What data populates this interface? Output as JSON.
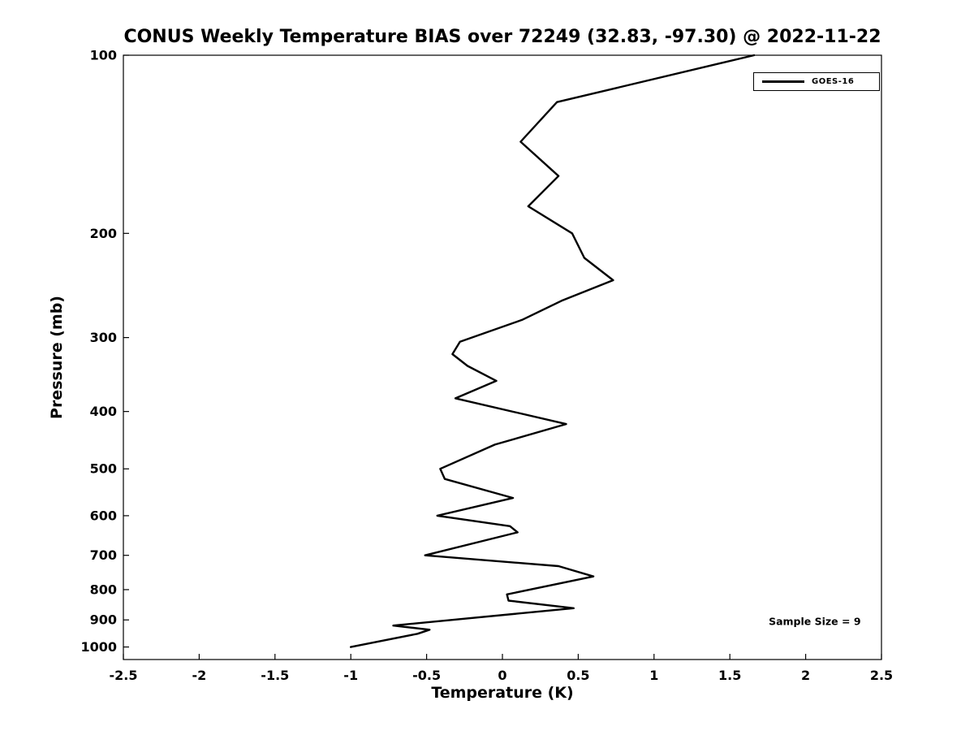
{
  "chart_data": {
    "type": "line",
    "title": "CONUS Weekly Temperature BIAS over 72249 (32.83, -97.30) @ 2022-11-22",
    "xlabel": "Temperature (K)",
    "ylabel": "Pressure (mb)",
    "xlim": [
      -2.5,
      2.5
    ],
    "ylim": [
      100,
      1050
    ],
    "y_scale": "log",
    "y_inverted": true,
    "grid": false,
    "legend_position": "upper right",
    "x_ticks": [
      -2.5,
      -2,
      -1.5,
      -1,
      -0.5,
      0,
      0.5,
      1,
      1.5,
      2,
      2.5
    ],
    "x_tick_labels": [
      "-2.5",
      "-2",
      "-1.5",
      "-1",
      "-0.5",
      "0",
      "0.5",
      "1",
      "1.5",
      "2",
      "2.5"
    ],
    "y_ticks": [
      100,
      200,
      300,
      400,
      500,
      600,
      700,
      800,
      900,
      1000
    ],
    "y_tick_labels": [
      "100",
      "200",
      "300",
      "400",
      "500",
      "600",
      "700",
      "800",
      "900",
      "1000"
    ],
    "series": [
      {
        "name": "GOES-16",
        "color": "#000000",
        "line_width": 2.4,
        "points": [
          {
            "pressure": 100,
            "bias": 1.66
          },
          {
            "pressure": 120,
            "bias": 0.36
          },
          {
            "pressure": 140,
            "bias": 0.12
          },
          {
            "pressure": 160,
            "bias": 0.37
          },
          {
            "pressure": 180,
            "bias": 0.17
          },
          {
            "pressure": 200,
            "bias": 0.46
          },
          {
            "pressure": 220,
            "bias": 0.54
          },
          {
            "pressure": 240,
            "bias": 0.73
          },
          {
            "pressure": 260,
            "bias": 0.39
          },
          {
            "pressure": 280,
            "bias": 0.13
          },
          {
            "pressure": 305,
            "bias": -0.28
          },
          {
            "pressure": 320,
            "bias": -0.33
          },
          {
            "pressure": 335,
            "bias": -0.23
          },
          {
            "pressure": 355,
            "bias": -0.04
          },
          {
            "pressure": 380,
            "bias": -0.31
          },
          {
            "pressure": 420,
            "bias": 0.42
          },
          {
            "pressure": 455,
            "bias": -0.05
          },
          {
            "pressure": 500,
            "bias": -0.41
          },
          {
            "pressure": 520,
            "bias": -0.38
          },
          {
            "pressure": 560,
            "bias": 0.07
          },
          {
            "pressure": 600,
            "bias": -0.43
          },
          {
            "pressure": 625,
            "bias": 0.05
          },
          {
            "pressure": 640,
            "bias": 0.1
          },
          {
            "pressure": 700,
            "bias": -0.51
          },
          {
            "pressure": 730,
            "bias": 0.37
          },
          {
            "pressure": 760,
            "bias": 0.6
          },
          {
            "pressure": 815,
            "bias": 0.03
          },
          {
            "pressure": 835,
            "bias": 0.04
          },
          {
            "pressure": 860,
            "bias": 0.47
          },
          {
            "pressure": 920,
            "bias": -0.72
          },
          {
            "pressure": 935,
            "bias": -0.48
          },
          {
            "pressure": 950,
            "bias": -0.56
          },
          {
            "pressure": 1000,
            "bias": -1.0
          }
        ]
      }
    ],
    "annotations": [
      {
        "text": "Sample Size = 9",
        "x": 2.06,
        "pressure": 905
      }
    ]
  }
}
